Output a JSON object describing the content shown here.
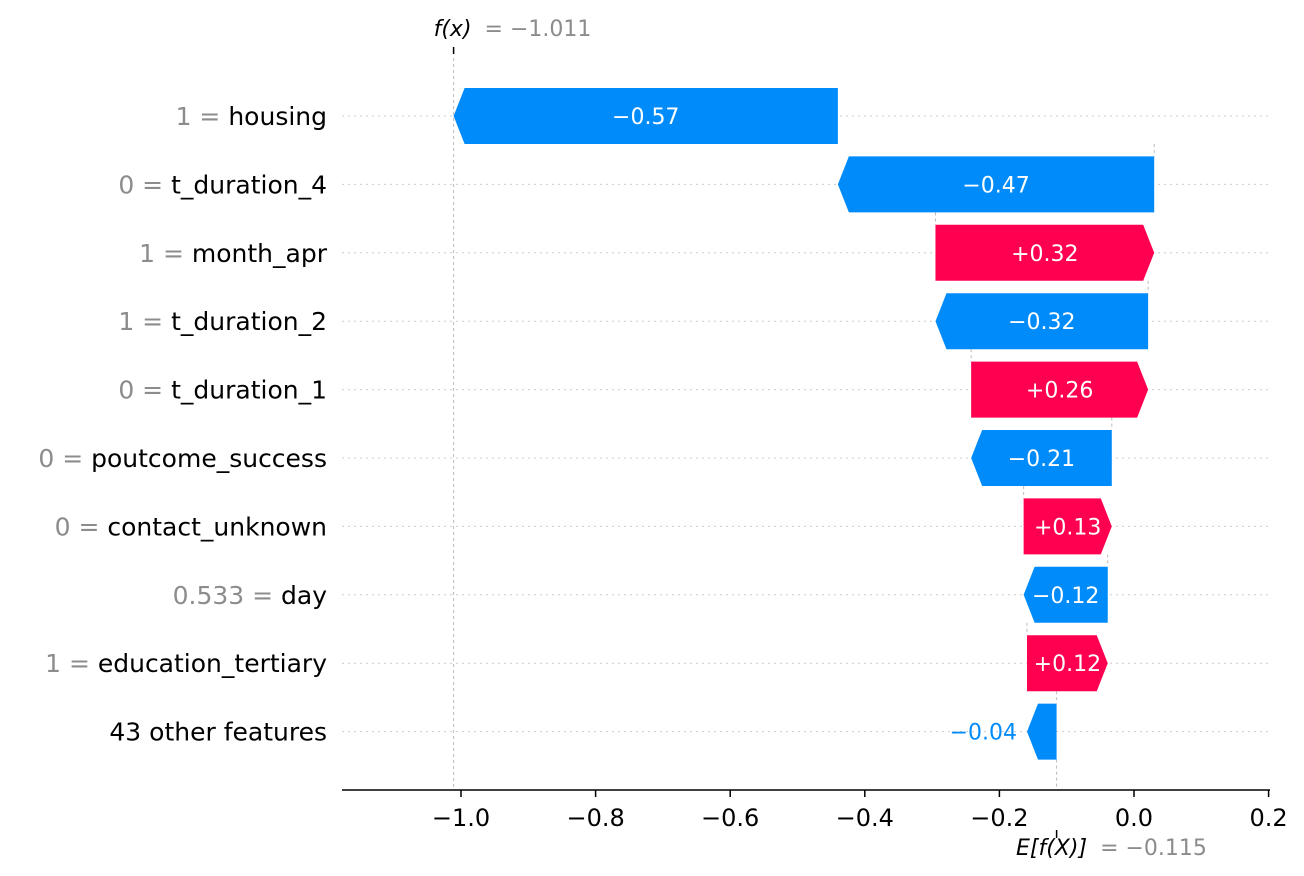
{
  "chart_data": {
    "type": "waterfall",
    "fx": {
      "label": "f(x)",
      "value_text": "= −1.011",
      "value": -1.011
    },
    "base": {
      "label": "E[f(X)]",
      "value_text": "= −0.115",
      "value": -0.115
    },
    "xlim": [
      -1.176,
      0.2
    ],
    "xticks": [
      {
        "value": -1.0,
        "label": "−1.0"
      },
      {
        "value": -0.8,
        "label": "−0.8"
      },
      {
        "value": -0.6,
        "label": "−0.6"
      },
      {
        "value": -0.4,
        "label": "−0.4"
      },
      {
        "value": -0.2,
        "label": "−0.2"
      },
      {
        "value": 0.0,
        "label": "0.0"
      },
      {
        "value": 0.2,
        "label": "0.2"
      }
    ],
    "features": [
      {
        "value_text": "1 = ",
        "name": "housing",
        "start": -0.44,
        "end": -1.011,
        "label": "−0.57"
      },
      {
        "value_text": "0 = ",
        "name": "t_duration_4",
        "start": 0.03,
        "end": -0.44,
        "label": "−0.47"
      },
      {
        "value_text": "1 = ",
        "name": "month_apr",
        "start": -0.295,
        "end": 0.03,
        "label": "+0.32"
      },
      {
        "value_text": "1 = ",
        "name": "t_duration_2",
        "start": 0.021,
        "end": -0.295,
        "label": "−0.32"
      },
      {
        "value_text": "0 = ",
        "name": "t_duration_1",
        "start": -0.242,
        "end": 0.021,
        "label": "+0.26"
      },
      {
        "value_text": "0 = ",
        "name": "poutcome_success",
        "start": -0.033,
        "end": -0.242,
        "label": "−0.21"
      },
      {
        "value_text": "0 = ",
        "name": "contact_unknown",
        "start": -0.164,
        "end": -0.033,
        "label": "+0.13"
      },
      {
        "value_text": "0.533 = ",
        "name": "day",
        "start": -0.039,
        "end": -0.164,
        "label": "−0.12"
      },
      {
        "value_text": "1 = ",
        "name": "education_tertiary",
        "start": -0.159,
        "end": -0.039,
        "label": "+0.12"
      },
      {
        "value_text": "",
        "name": "43 other features",
        "start": -0.115,
        "end": -0.159,
        "label": "−0.04"
      }
    ]
  },
  "colors": {
    "positive": "#ff0051",
    "negative": "#008bfb",
    "label_gray": "#8c8c8c",
    "grid": "#cccccc"
  }
}
